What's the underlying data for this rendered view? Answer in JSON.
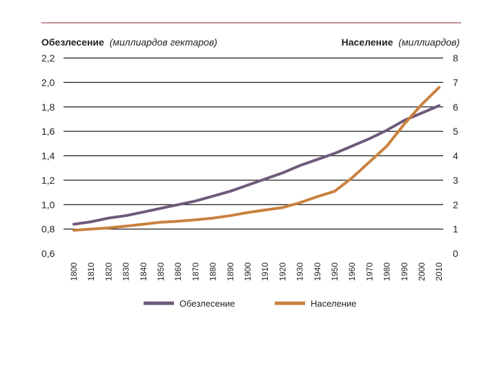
{
  "colors": {
    "deforestation": "#6e5a79",
    "population": "#c8813e",
    "grid": "#1a1a1a",
    "rule": "#8a1c2a"
  },
  "chart_data": {
    "type": "line",
    "left_axis": {
      "title": "Обезлесение",
      "unit": "(миллиардов гектаров)",
      "ticks": [
        "0,6",
        "0,8",
        "1,0",
        "1,2",
        "1,4",
        "1,6",
        "1,8",
        "2,0",
        "2,2"
      ],
      "range": [
        0.6,
        2.2
      ]
    },
    "right_axis": {
      "title": "Население",
      "unit": "(миллиардов)",
      "ticks": [
        "0",
        "1",
        "2",
        "3",
        "4",
        "5",
        "6",
        "7",
        "8"
      ],
      "range": [
        0,
        8
      ]
    },
    "x": [
      "1800",
      "1810",
      "1820",
      "1830",
      "1840",
      "1850",
      "1860",
      "1870",
      "1880",
      "1890",
      "1900",
      "1910",
      "1920",
      "1930",
      "1940",
      "1950",
      "1960",
      "1970",
      "1980",
      "1990",
      "2000",
      "2010"
    ],
    "grid": true,
    "legend_position": "bottom",
    "series": [
      {
        "name": "Обезлесение",
        "axis": "left",
        "values": [
          0.84,
          0.86,
          0.89,
          0.91,
          0.94,
          0.97,
          1.0,
          1.03,
          1.07,
          1.11,
          1.16,
          1.21,
          1.26,
          1.32,
          1.37,
          1.42,
          1.48,
          1.54,
          1.61,
          1.69,
          1.75,
          1.81
        ]
      },
      {
        "name": "Население",
        "axis": "right",
        "values": [
          0.95,
          1.0,
          1.05,
          1.12,
          1.2,
          1.28,
          1.32,
          1.38,
          1.45,
          1.55,
          1.68,
          1.78,
          1.88,
          2.08,
          2.33,
          2.55,
          3.1,
          3.75,
          4.4,
          5.3,
          6.1,
          6.8
        ]
      }
    ]
  }
}
